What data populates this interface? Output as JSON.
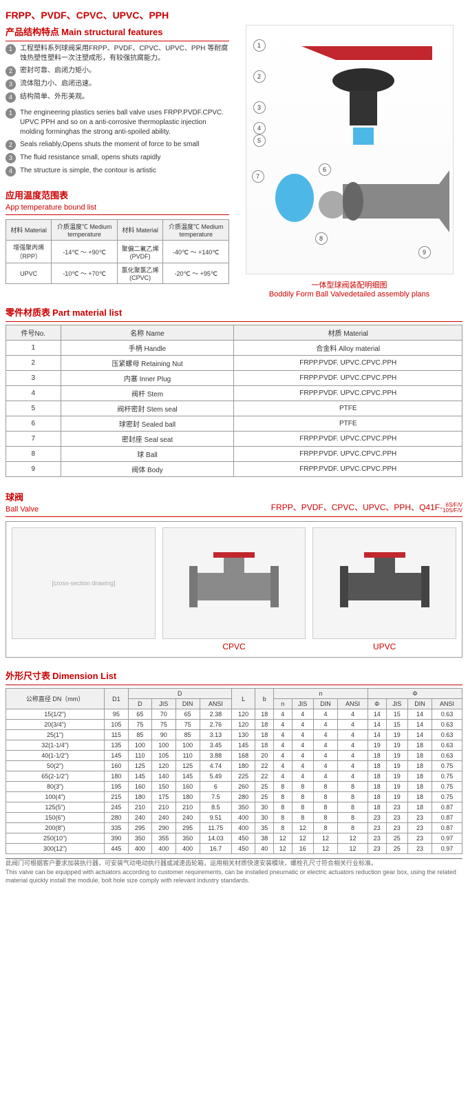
{
  "header_materials": "FRPP、PVDF、CPVC、UPVC、PPH",
  "sec_feat_cn": "产品结构特点",
  "sec_feat_en": "Main structural features",
  "feat_cn": [
    "工程塑料系列球阀采用FRPP、PVDF、CPVC、UPVC、PPH 等耐腐蚀热塑性塑料一次注塑成形，有较强抗腐能力。",
    "密封可靠、启闭力矩小。",
    "流体阻力小、启闭迅速。",
    "结构简单、外形美观。"
  ],
  "feat_en": [
    "The engineering plastics series ball valve uses FRPP.PVDF.CPVC. UPVC PPH and so on a anti-corrosive thermoplastic injection molding forminghas the strong anti-spoiled ability.",
    "Seals reliably,Opens shuts the moment of force to be small",
    "The fluid resistance small, opens shuts rapidly",
    "The structure is simple, the contour is artistic"
  ],
  "diag_caption_cn": "一体型球阀装配明细图",
  "diag_caption_en": "Boddily Form Ball Valvedetailed assembly plans",
  "sec_temp_cn": "应用温度范围表",
  "sec_temp_en": "App temperature bound list",
  "temp_h": {
    "mat": "材料 Material",
    "med": "介质温度℃ Medium temperature"
  },
  "temp_rows": [
    {
      "m1": "增强聚丙烯（RPP）",
      "t1": "-14℃ ～ +90℃",
      "m2": "聚偏二氟乙烯 (PVDF)",
      "t2": "-40℃ ～ +140℃"
    },
    {
      "m1": "UPVC",
      "t1": "-10℃ ～ +70℃",
      "m2": "氯化聚氯乙烯 (CPVC)",
      "t2": "-20℃ ～ +95℃"
    }
  ],
  "sec_part_cn": "零件材质表",
  "sec_part_en": "Part material list",
  "part_h": {
    "no": "件号No.",
    "name": "名称 Name",
    "mat": "材质 Material"
  },
  "parts": [
    {
      "n": "1",
      "name": "手柄 Handle",
      "mat": "合金料 Alloy material"
    },
    {
      "n": "2",
      "name": "压紧螺母 Retaining Nut",
      "mat": "FRPP.PVDF. UPVC.CPVC.PPH"
    },
    {
      "n": "3",
      "name": "内塞 Inner Plug",
      "mat": "FRPP.PVDF. UPVC.CPVC.PPH"
    },
    {
      "n": "4",
      "name": "阀杆 Stem",
      "mat": "FRPP.PVDF. UPVC.CPVC.PPH"
    },
    {
      "n": "5",
      "name": "阀杆密封 Stem seal",
      "mat": "PTFE"
    },
    {
      "n": "6",
      "name": "球密封 Sealed ball",
      "mat": "PTFE"
    },
    {
      "n": "7",
      "name": "密封座 Seal seat",
      "mat": "FRPP.PVDF. UPVC.CPVC.PPH"
    },
    {
      "n": "8",
      "name": "球 Ball",
      "mat": "FRPP.PVDF. UPVC.CPVC.PPH"
    },
    {
      "n": "9",
      "name": "阀体 Body",
      "mat": "FRPP.PVDF. UPVC.CPVC.PPH"
    }
  ],
  "sec_bv_cn": "球阀",
  "sec_bv_en": "Ball Valve",
  "model": "FRPP、PVDF、CPVC、UPVC、PPH、Q41F-",
  "model_suf": "6S/F/V\n10S/F/V",
  "v1": "CPVC",
  "v2": "UPVC",
  "v0_alt": "[cross-section drawing]",
  "sec_dim_cn": "外形尺寸表",
  "sec_dim_en": "Dimension List",
  "dim_h1": {
    "dn": "公称直径 DN（mm）",
    "d1": "D1",
    "d": "D",
    "l": "L",
    "b": "b",
    "n": "n",
    "phi": "Φ"
  },
  "dim_sub": [
    "D",
    "JIS",
    "DIN",
    "ANSI"
  ],
  "dim_sub_n": [
    "n",
    "JIS",
    "DIN",
    "ANSI"
  ],
  "dim_sub_p": [
    "Φ",
    "JIS",
    "DIN",
    "ANSI"
  ],
  "dims": [
    [
      "15(1/2\")",
      "95",
      "65",
      "70",
      "65",
      "2.38",
      "120",
      "18",
      "4",
      "4",
      "4",
      "4",
      "14",
      "15",
      "14",
      "0.63"
    ],
    [
      "20(3/4\")",
      "105",
      "75",
      "75",
      "75",
      "2.76",
      "120",
      "18",
      "4",
      "4",
      "4",
      "4",
      "14",
      "15",
      "14",
      "0.63"
    ],
    [
      "25(1\")",
      "115",
      "85",
      "90",
      "85",
      "3.13",
      "130",
      "18",
      "4",
      "4",
      "4",
      "4",
      "14",
      "19",
      "14",
      "0.63"
    ],
    [
      "32(1-1/4\")",
      "135",
      "100",
      "100",
      "100",
      "3.45",
      "145",
      "18",
      "4",
      "4",
      "4",
      "4",
      "19",
      "19",
      "18",
      "0.63"
    ],
    [
      "40(1-1/2\")",
      "145",
      "110",
      "105",
      "110",
      "3.88",
      "168",
      "20",
      "4",
      "4",
      "4",
      "4",
      "18",
      "19",
      "18",
      "0.63"
    ],
    [
      "50(2\")",
      "160",
      "125",
      "120",
      "125",
      "4.74",
      "180",
      "22",
      "4",
      "4",
      "4",
      "4",
      "18",
      "19",
      "18",
      "0.75"
    ],
    [
      "65(2-1/2\")",
      "180",
      "145",
      "140",
      "145",
      "5.49",
      "225",
      "22",
      "4",
      "4",
      "4",
      "4",
      "18",
      "19",
      "18",
      "0.75"
    ],
    [
      "80(3\")",
      "195",
      "160",
      "150",
      "160",
      "6",
      "260",
      "25",
      "8",
      "8",
      "8",
      "8",
      "18",
      "19",
      "18",
      "0.75"
    ],
    [
      "100(4\")",
      "215",
      "180",
      "175",
      "180",
      "7.5",
      "280",
      "25",
      "8",
      "8",
      "8",
      "8",
      "18",
      "19",
      "18",
      "0.75"
    ],
    [
      "125(5\")",
      "245",
      "210",
      "210",
      "210",
      "8.5",
      "350",
      "30",
      "8",
      "8",
      "8",
      "8",
      "18",
      "23",
      "18",
      "0.87"
    ],
    [
      "150(6\")",
      "280",
      "240",
      "240",
      "240",
      "9.51",
      "400",
      "30",
      "8",
      "8",
      "8",
      "8",
      "23",
      "23",
      "23",
      "0.87"
    ],
    [
      "200(8\")",
      "335",
      "295",
      "290",
      "295",
      "11.75",
      "400",
      "35",
      "8",
      "12",
      "8",
      "8",
      "23",
      "23",
      "23",
      "0.87"
    ],
    [
      "250(10\")",
      "390",
      "350",
      "355",
      "350",
      "14.03",
      "450",
      "38",
      "12",
      "12",
      "12",
      "12",
      "23",
      "25",
      "23",
      "0.97"
    ],
    [
      "300(12\")",
      "445",
      "400",
      "400",
      "400",
      "16.7",
      "450",
      "40",
      "12",
      "16",
      "12",
      "12",
      "23",
      "25",
      "23",
      "0.97"
    ]
  ],
  "foot_cn": "此阀门可根据客户要求加装执行器，可安装气动电动执行器或减速齿轮箱，运用相关材质快速安装模块，螺栓孔尺寸符合相关行业标准。",
  "foot_en": "This valve can be equipped with actuators according to customer requirements, can be installed pneumatic or electric actuators reduction gear box, using the related material quickly install the module, bolt hole size comply with relevant industry standards."
}
